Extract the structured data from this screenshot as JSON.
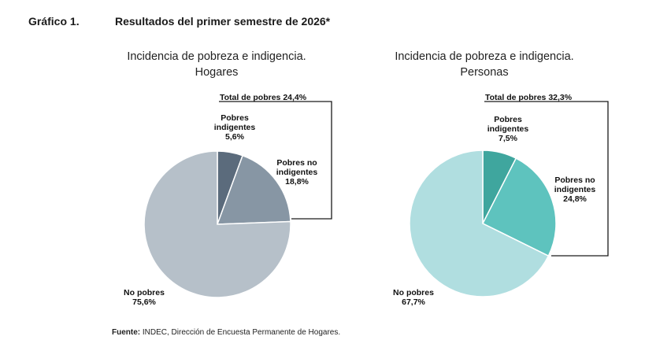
{
  "figure": {
    "label": "Gráfico 1.",
    "title": "Resultados del primer semestre de 2026*"
  },
  "source": {
    "prefix": "Fuente:",
    "text": " INDEC, Dirección de Encuesta Permanente de Hogares."
  },
  "chart_data": [
    {
      "type": "pie",
      "title_line1": "Incidencia de pobreza e indigencia.",
      "title_line2": "Hogares",
      "total_label": "Total de pobres 24,4%",
      "total_value": 24.4,
      "slices": [
        {
          "label_line1": "Pobres",
          "label_line2": "indigentes",
          "value_label": "5,6%",
          "value": 5.6,
          "color": "#5b6b7c"
        },
        {
          "label_line1": "Pobres no",
          "label_line2": "indigentes",
          "value_label": "18,8%",
          "value": 18.8,
          "color": "#8796a4"
        },
        {
          "label_line1": "No pobres",
          "label_line2": "",
          "value_label": "75,6%",
          "value": 75.6,
          "color": "#b6c0c9"
        }
      ]
    },
    {
      "type": "pie",
      "title_line1": "Incidencia de pobreza e indigencia.",
      "title_line2": "Personas",
      "total_label": "Total de pobres 32,3%",
      "total_value": 32.3,
      "slices": [
        {
          "label_line1": "Pobres",
          "label_line2": "indigentes",
          "value_label": "7,5%",
          "value": 7.5,
          "color": "#3fa69e"
        },
        {
          "label_line1": "Pobres no",
          "label_line2": "indigentes",
          "value_label": "24,8%",
          "value": 24.8,
          "color": "#5ec3be"
        },
        {
          "label_line1": "No pobres",
          "label_line2": "",
          "value_label": "67,7%",
          "value": 67.7,
          "color": "#b0dee0"
        }
      ]
    }
  ]
}
